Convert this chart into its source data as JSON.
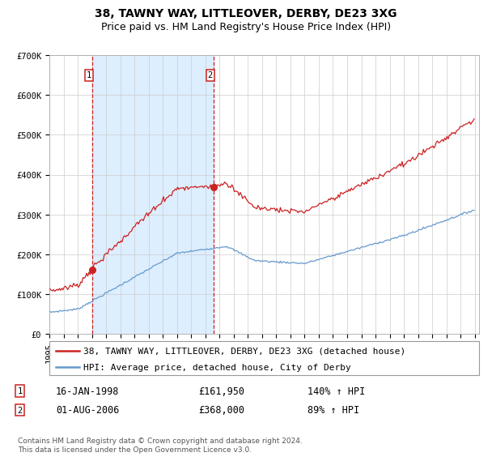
{
  "title": "38, TAWNY WAY, LITTLEOVER, DERBY, DE23 3XG",
  "subtitle": "Price paid vs. HM Land Registry's House Price Index (HPI)",
  "ylim": [
    0,
    700000
  ],
  "yticks": [
    0,
    100000,
    200000,
    300000,
    400000,
    500000,
    600000,
    700000
  ],
  "ytick_labels": [
    "£0",
    "£100K",
    "£200K",
    "£300K",
    "£400K",
    "£500K",
    "£600K",
    "£700K"
  ],
  "sale1_date_label": "16-JAN-1998",
  "sale1_price": 161950,
  "sale1_hpi_pct": "140% ↑ HPI",
  "sale2_date_label": "01-AUG-2006",
  "sale2_price": 368000,
  "sale2_hpi_pct": "89% ↑ HPI",
  "sale1_x": 1998.04,
  "sale2_x": 2006.58,
  "line1_color": "#cc2222",
  "line2_color": "#6699cc",
  "shading_color": "#ddeeff",
  "grid_color": "#cccccc",
  "background_color": "#ffffff",
  "legend1_label": "38, TAWNY WAY, LITTLEOVER, DERBY, DE23 3XG (detached house)",
  "legend2_label": "HPI: Average price, detached house, City of Derby",
  "footnote": "Contains HM Land Registry data © Crown copyright and database right 2024.\nThis data is licensed under the Open Government Licence v3.0.",
  "title_fontsize": 10,
  "subtitle_fontsize": 9,
  "tick_fontsize": 7.5,
  "legend_fontsize": 8
}
